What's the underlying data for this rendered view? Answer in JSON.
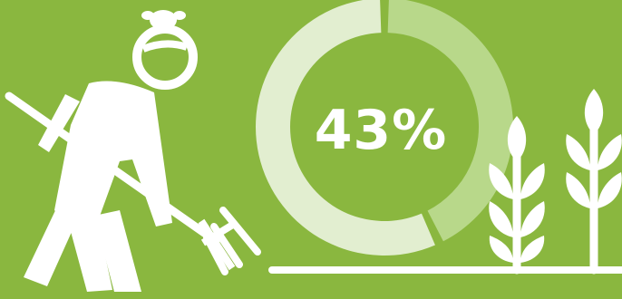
{
  "chart_data": {
    "type": "pie",
    "donut": true,
    "value_label": "43%",
    "slices": [
      {
        "value": 43,
        "color": "#b8d88a"
      },
      {
        "value": 57,
        "color": "#e2eed0"
      }
    ]
  },
  "colors": {
    "background": "#8ab73f",
    "icon": "#ffffff"
  },
  "icons": [
    "farmer-with-pitchfork-icon",
    "wheat-icon",
    "ground-line"
  ]
}
